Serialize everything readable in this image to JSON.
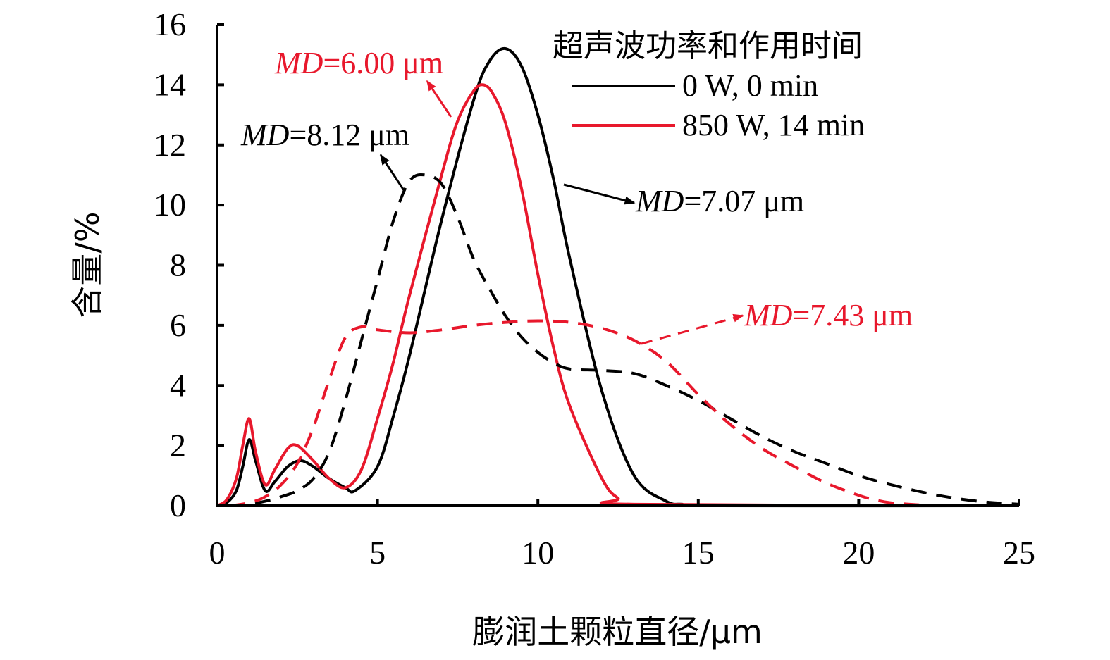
{
  "chart_data": {
    "type": "line",
    "xlabel": "膨润土颗粒直径/μm",
    "ylabel": "含量/%",
    "xlim": [
      0,
      25
    ],
    "ylim": [
      0,
      16
    ],
    "xticks": [
      "0",
      "5",
      "10",
      "15",
      "20",
      "25"
    ],
    "yticks": [
      "0",
      "2",
      "4",
      "6",
      "8",
      "10",
      "12",
      "14",
      "16"
    ],
    "legend": {
      "title": "超声波功率和作用时间",
      "placement": "top-right",
      "entries": [
        {
          "label": "0 W, 0 min",
          "color": "#000000"
        },
        {
          "label": "850 W, 14 min",
          "color": "#e8182c"
        }
      ]
    },
    "series": [
      {
        "color": "#000000",
        "dash": false,
        "x": [
          0,
          0.3,
          0.6,
          0.8,
          1.0,
          1.2,
          1.5,
          1.8,
          2.2,
          2.6,
          3.0,
          3.5,
          4.0,
          4.3,
          5.0,
          5.5,
          6.0,
          7.0,
          8.0,
          8.5,
          9.0,
          9.5,
          10.0,
          10.5,
          11.0,
          12.0,
          13.0,
          14.0,
          14.5,
          15.0,
          25.0
        ],
        "y": [
          0,
          0.1,
          0.5,
          1.3,
          2.2,
          1.5,
          0.5,
          0.8,
          1.3,
          1.5,
          1.3,
          0.9,
          0.6,
          0.5,
          1.3,
          3.0,
          5.0,
          9.5,
          13.5,
          14.8,
          15.2,
          14.6,
          13.0,
          10.8,
          8.2,
          3.8,
          1.0,
          0.15,
          0.05,
          0.0,
          0.0
        ]
      },
      {
        "color": "#e8182c",
        "dash": false,
        "x": [
          0,
          0.3,
          0.6,
          0.8,
          1.0,
          1.2,
          1.5,
          1.8,
          2.2,
          2.5,
          3.0,
          3.5,
          4.0,
          4.5,
          5.0,
          5.5,
          6.0,
          7.0,
          7.5,
          8.0,
          8.3,
          8.6,
          9.0,
          9.5,
          10.0,
          10.5,
          11.0,
          12.0,
          12.5,
          13.0,
          25.0
        ],
        "y": [
          0,
          0.2,
          0.9,
          2.0,
          2.9,
          1.8,
          0.7,
          1.2,
          1.9,
          2.0,
          1.5,
          0.9,
          0.6,
          1.2,
          2.9,
          4.8,
          7.0,
          11.0,
          12.8,
          13.8,
          14.0,
          13.7,
          12.7,
          10.5,
          7.7,
          5.2,
          3.3,
          0.9,
          0.25,
          0.05,
          0.0
        ]
      },
      {
        "color": "#000000",
        "dash": true,
        "x": [
          0.4,
          1.0,
          1.5,
          2.0,
          2.5,
          3.0,
          3.5,
          4.0,
          4.5,
          5.0,
          5.5,
          6.0,
          6.5,
          7.0,
          7.5,
          8.0,
          8.5,
          9.0,
          9.5,
          10.0,
          10.5,
          11.0,
          12.0,
          13.0,
          14.0,
          15.0,
          16.0,
          17.0,
          18.0,
          19.0,
          20.0,
          21.0,
          22.0,
          23.0,
          24.0,
          25.0
        ],
        "y": [
          0,
          0.05,
          0.15,
          0.3,
          0.5,
          0.9,
          1.8,
          3.5,
          5.5,
          7.5,
          9.5,
          10.8,
          11.0,
          10.7,
          9.6,
          8.2,
          7.2,
          6.3,
          5.6,
          5.1,
          4.75,
          4.55,
          4.5,
          4.4,
          4.0,
          3.5,
          2.9,
          2.3,
          1.8,
          1.4,
          1.0,
          0.7,
          0.45,
          0.25,
          0.12,
          0.05
        ]
      },
      {
        "color": "#e8182c",
        "dash": true,
        "x": [
          0.4,
          1.0,
          1.5,
          2.0,
          2.5,
          3.0,
          3.5,
          4.0,
          4.5,
          5.0,
          6.0,
          7.0,
          8.0,
          9.0,
          10.0,
          11.0,
          12.0,
          13.0,
          14.0,
          15.0,
          16.0,
          17.0,
          18.0,
          19.0,
          20.0,
          20.5,
          21.0,
          22.0
        ],
        "y": [
          0,
          0.1,
          0.3,
          0.7,
          1.4,
          2.6,
          4.2,
          5.6,
          5.95,
          5.85,
          5.75,
          5.85,
          6.0,
          6.1,
          6.15,
          6.1,
          5.9,
          5.5,
          4.8,
          3.7,
          2.7,
          1.9,
          1.3,
          0.75,
          0.35,
          0.2,
          0.1,
          0.02
        ]
      }
    ],
    "annotations": [
      {
        "label": "MD",
        "value": "=6.00 μm",
        "color": "#e8182c"
      },
      {
        "label": "MD",
        "value": "=8.12 μm",
        "color": "#000000"
      },
      {
        "label": "MD",
        "value": "=7.07 μm",
        "color": "#000000"
      },
      {
        "label": "MD",
        "value": "=7.43 μm",
        "color": "#e8182c"
      }
    ]
  }
}
